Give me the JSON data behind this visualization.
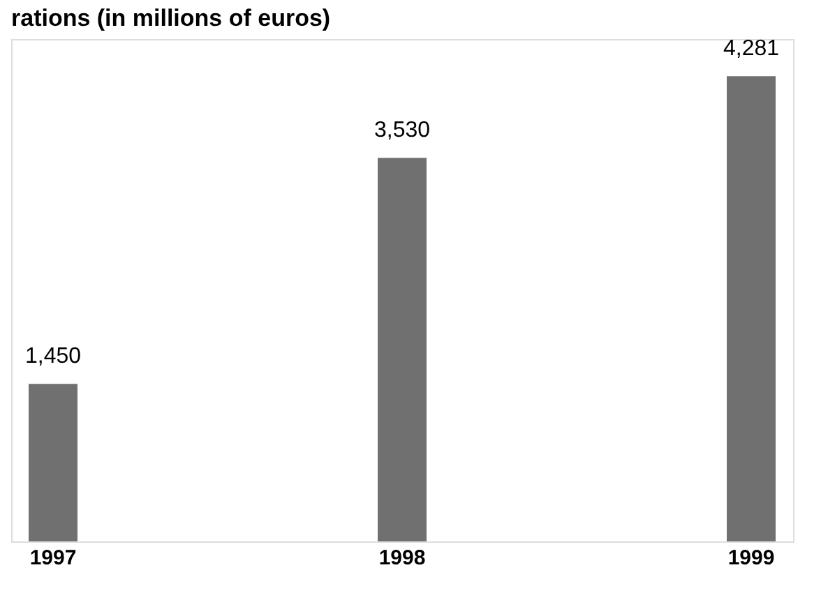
{
  "chart_data": {
    "type": "bar",
    "title": "rations (in millions of euros)",
    "categories": [
      "1997",
      "1998",
      "1999"
    ],
    "values": [
      1450,
      3530,
      4281
    ],
    "color": "#707070",
    "value_labels": [
      "1,450",
      "3,530",
      "4,281"
    ]
  }
}
